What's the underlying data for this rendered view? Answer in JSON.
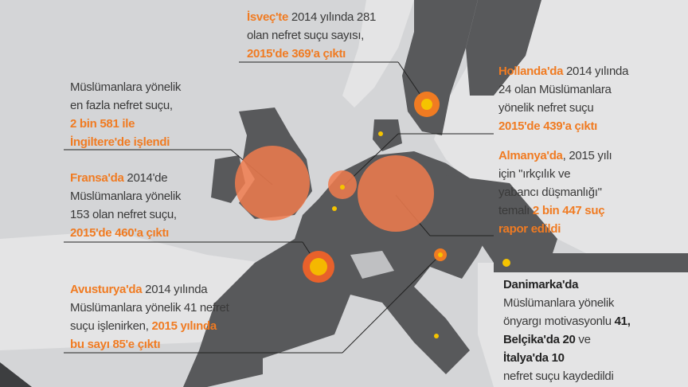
{
  "annotations": {
    "sweden": {
      "lines": [
        [
          "İsveç'te",
          " 2014 yılında 281"
        ],
        [
          "olan nefret suçu sayısı,"
        ],
        [
          "2015'de 369'a çıktı"
        ]
      ]
    },
    "uk": {
      "lines": [
        [
          "Müslümanlara yönelik"
        ],
        [
          "en fazla nefret suçu,"
        ],
        [
          "2 bin 581 ile"
        ],
        [
          "İngiltere'de işlendi"
        ]
      ]
    },
    "france": {
      "lines": [
        [
          "Fransa'da",
          " 2014'de"
        ],
        [
          "Müslümanlara yönelik"
        ],
        [
          "153 olan nefret suçu,"
        ],
        [
          "2015'de 460'a çıktı"
        ]
      ]
    },
    "austria": {
      "lines": [
        [
          "Avusturya'da",
          " 2014 yılında"
        ],
        [
          "Müslümanlara yönelik 41 nefret"
        ],
        [
          "suçu işlenirken, ",
          "2015 yılında"
        ],
        [
          "bu sayı 85'e çıktı"
        ]
      ]
    },
    "netherlands": {
      "lines": [
        [
          "Hollanda'da",
          " 2014 yılında"
        ],
        [
          "24 olan Müslümanlara"
        ],
        [
          "yönelik nefret suçu"
        ],
        [
          "2015'de 439'a çıktı"
        ]
      ]
    },
    "germany": {
      "lines": [
        [
          "Almanya'da",
          ", 2015 yılı"
        ],
        [
          "için \"ırkçılık ve"
        ],
        [
          "yabancı düşmanlığı\""
        ],
        [
          "temalı ",
          "2 bin 447 suç"
        ],
        [
          "rapor edildi"
        ]
      ]
    }
  },
  "side_box": {
    "lines": [
      [
        "Danimarka'da"
      ],
      [
        "Müslümanlara yönelik"
      ],
      [
        "önyargı motivasyonlu ",
        "41,"
      ],
      [
        "Belçika'da 20",
        " ve"
      ],
      [
        "İtalya'da 10"
      ],
      [
        "nefret suçu kaydedildi"
      ]
    ]
  }
}
